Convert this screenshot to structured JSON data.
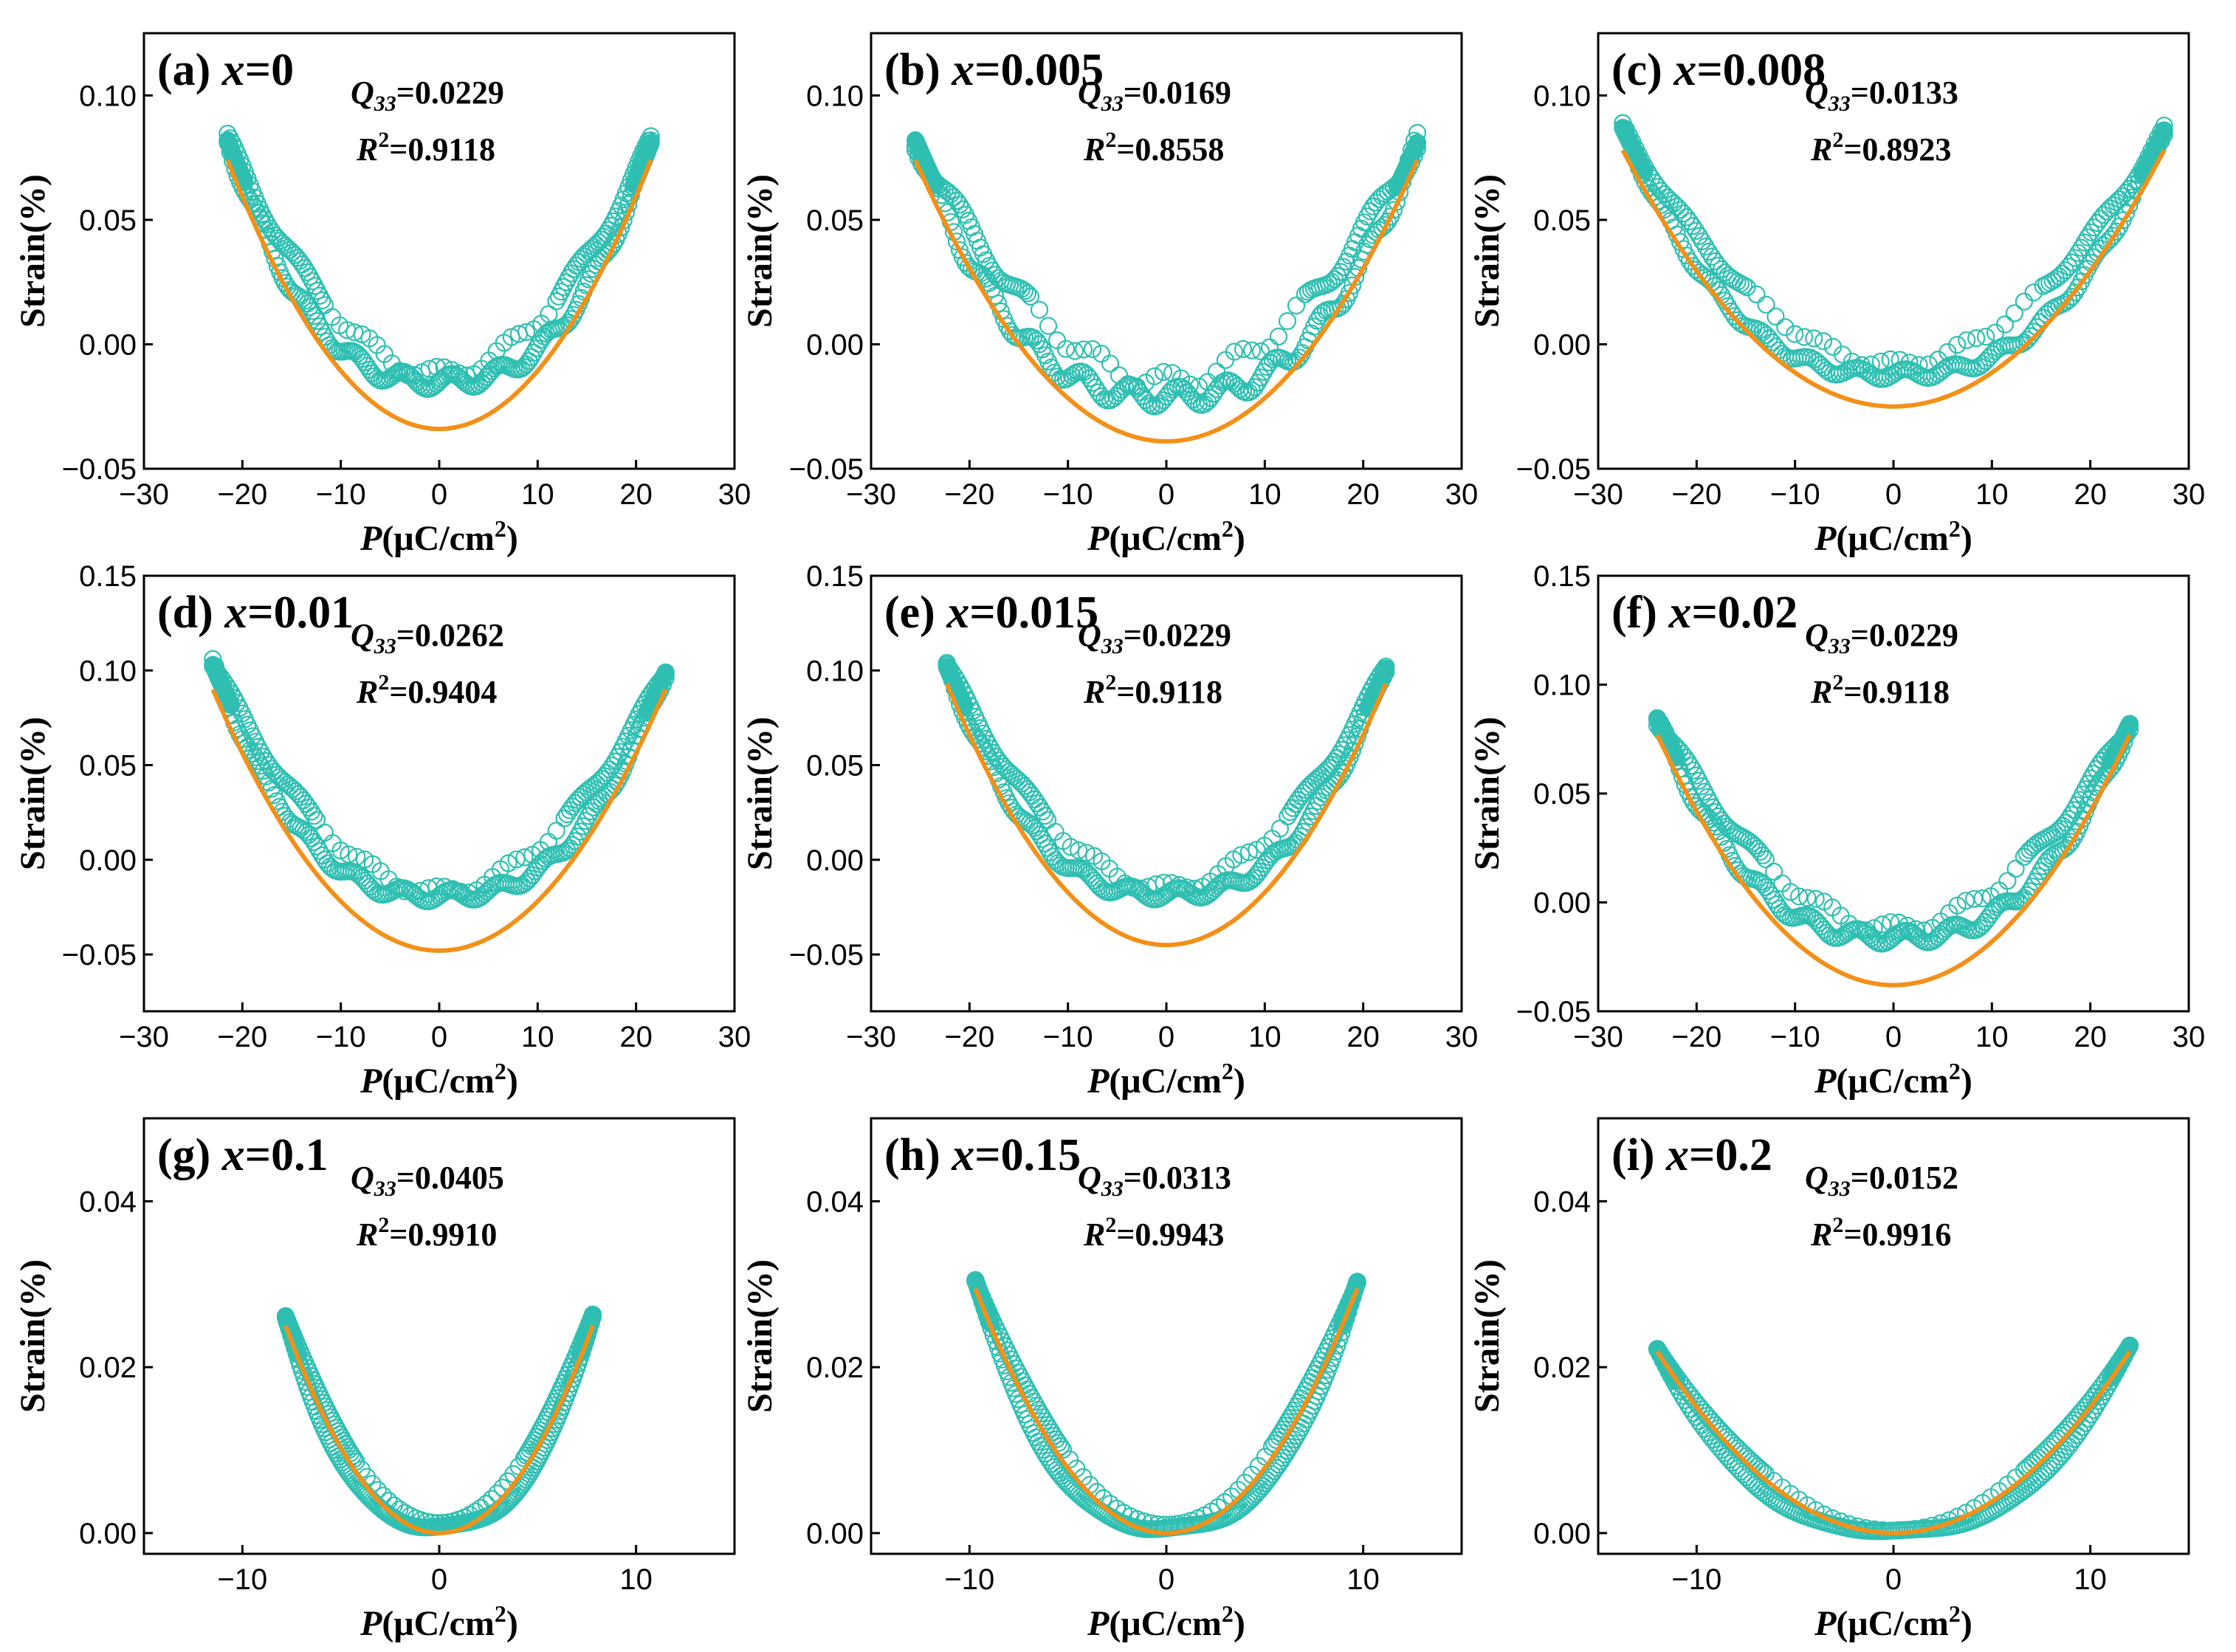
{
  "colors": {
    "measured": "#2fbfb2",
    "fit": "#f39018",
    "axis": "#000000",
    "background": "#ffffff"
  },
  "axes": {
    "ylabel": "Strain(%)",
    "xlabel_symbol": "P",
    "xlabel_unit_prefix": "(μC/cm",
    "xlabel_unit_exp": "2",
    "xlabel_unit_suffix": ")"
  },
  "chart_data": [
    {
      "type": "scatter",
      "panel": "(a)",
      "x_value": "0",
      "q33_value": "0.0229",
      "r2_value": "0.9118",
      "xlim": [
        -30,
        30
      ],
      "ylim": [
        -0.05,
        0.125
      ],
      "xticks": [
        -30,
        -20,
        -10,
        0,
        10,
        20,
        30
      ],
      "yticks": [
        -0.05,
        0,
        0.05,
        0.1
      ],
      "xtick_labels": [
        "−30",
        "−20",
        "−10",
        "0",
        "10",
        "20",
        "30"
      ],
      "ytick_labels": [
        "−0.05",
        "0.00",
        "0.05",
        "0.10"
      ],
      "pmax": 21.5,
      "smax_left": 0.082,
      "smax_right": 0.081,
      "loop_min": -0.015,
      "center_min": -0.012,
      "wave": 0.003,
      "fit_min": -0.034,
      "fit_max": 0.074,
      "series": [
        {
          "name": "",
          "values": "measured strain vs polarization (loop)"
        },
        {
          "name": "",
          "values": "quadratic fit S = Q33·P²"
        }
      ]
    },
    {
      "type": "scatter",
      "panel": "(b)",
      "x_value": "0.005",
      "q33_value": "0.0169",
      "r2_value": "0.8558",
      "xlim": [
        -30,
        30
      ],
      "ylim": [
        -0.05,
        0.125
      ],
      "xticks": [
        -30,
        -20,
        -10,
        0,
        10,
        20,
        30
      ],
      "yticks": [
        -0.05,
        0,
        0.05,
        0.1
      ],
      "xtick_labels": [
        "−30",
        "−20",
        "−10",
        "0",
        "10",
        "20",
        "30"
      ],
      "ytick_labels": [
        "−0.05",
        "0.00",
        "0.05",
        "0.10"
      ],
      "pmax": 25.5,
      "smax_left": 0.082,
      "smax_right": 0.081,
      "loop_min": -0.021,
      "center_min": -0.015,
      "wave": 0.004,
      "fit_min": -0.039,
      "fit_max": 0.074,
      "series": [
        {
          "name": "",
          "values": "measured strain vs polarization (loop)"
        },
        {
          "name": "",
          "values": "quadratic fit S = Q33·P²"
        }
      ]
    },
    {
      "type": "scatter",
      "panel": "(c)",
      "x_value": "0.008",
      "q33_value": "0.0133",
      "r2_value": "0.8923",
      "xlim": [
        -30,
        30
      ],
      "ylim": [
        -0.05,
        0.125
      ],
      "xticks": [
        -30,
        -20,
        -10,
        0,
        10,
        20,
        30
      ],
      "yticks": [
        -0.05,
        0,
        0.05,
        0.1
      ],
      "xtick_labels": [
        "−30",
        "−20",
        "−10",
        "0",
        "10",
        "20",
        "30"
      ],
      "ytick_labels": [
        "−0.05",
        "0.00",
        "0.05",
        "0.10"
      ],
      "pmax": 27.5,
      "smax_left": 0.087,
      "smax_right": 0.086,
      "loop_min": -0.012,
      "center_min": -0.008,
      "wave": 0.002,
      "fit_min": -0.025,
      "fit_max": 0.078,
      "series": [
        {
          "name": "",
          "values": "measured strain vs polarization (loop)"
        },
        {
          "name": "",
          "values": "quadratic fit S = Q33·P²"
        }
      ]
    },
    {
      "type": "scatter",
      "panel": "(d)",
      "x_value": "0.01",
      "q33_value": "0.0262",
      "r2_value": "0.9404",
      "xlim": [
        -30,
        30
      ],
      "ylim": [
        -0.08,
        0.15
      ],
      "xticks": [
        -30,
        -20,
        -10,
        0,
        10,
        20,
        30
      ],
      "yticks": [
        -0.05,
        0,
        0.05,
        0.1,
        0.15
      ],
      "xtick_labels": [
        "−30",
        "−20",
        "−10",
        "0",
        "10",
        "20",
        "30"
      ],
      "ytick_labels": [
        "−0.05",
        "0.00",
        "0.05",
        "0.10",
        "0.15"
      ],
      "pmax": 23,
      "smax_left": 0.103,
      "smax_right": 0.099,
      "loop_min": -0.019,
      "center_min": -0.017,
      "wave": 0.003,
      "fit_min": -0.048,
      "fit_max": 0.09,
      "series": [
        {
          "name": "",
          "values": "measured strain vs polarization (loop)"
        },
        {
          "name": "",
          "values": "quadratic fit S = Q33·P²"
        }
      ]
    },
    {
      "type": "scatter",
      "panel": "(e)",
      "x_value": "0.015",
      "q33_value": "0.0229",
      "r2_value": "0.9118",
      "xlim": [
        -30,
        30
      ],
      "ylim": [
        -0.08,
        0.15
      ],
      "xticks": [
        -30,
        -20,
        -10,
        0,
        10,
        20,
        30
      ],
      "yticks": [
        -0.05,
        0,
        0.05,
        0.1,
        0.15
      ],
      "xtick_labels": [
        "−30",
        "−20",
        "−10",
        "0",
        "10",
        "20",
        "30"
      ],
      "ytick_labels": [
        "−0.05",
        "0.00",
        "0.05",
        "0.10",
        "0.15"
      ],
      "pmax": 22.3,
      "smax_left": 0.102,
      "smax_right": 0.101,
      "loop_min": -0.018,
      "center_min": -0.015,
      "wave": 0.003,
      "fit_min": -0.045,
      "fit_max": 0.093,
      "series": [
        {
          "name": "",
          "values": "measured strain vs polarization (loop)"
        },
        {
          "name": "",
          "values": "quadratic fit S = Q33·P²"
        }
      ]
    },
    {
      "type": "scatter",
      "panel": "(f)",
      "x_value": "0.02",
      "q33_value": "0.0229",
      "r2_value": "0.9118",
      "xlim": [
        -30,
        30
      ],
      "ylim": [
        -0.05,
        0.15
      ],
      "xticks": [
        -30,
        -20,
        -10,
        0,
        10,
        20,
        30
      ],
      "yticks": [
        -0.05,
        0,
        0.05,
        0.1,
        0.15
      ],
      "xtick_labels": [
        "−30",
        "−20",
        "−10",
        "0",
        "10",
        "20",
        "30"
      ],
      "ytick_labels": [
        "−0.05",
        "0.00",
        "0.05",
        "0.10",
        "0.15"
      ],
      "pmax": 24,
      "smax_left": 0.084,
      "smax_right": 0.082,
      "loop_min": -0.016,
      "center_min": -0.012,
      "wave": 0.003,
      "fit_min": -0.038,
      "fit_max": 0.077,
      "series": [
        {
          "name": "",
          "values": "measured strain vs polarization (loop)"
        },
        {
          "name": "",
          "values": "quadratic fit S = Q33·P²"
        }
      ]
    },
    {
      "type": "scatter",
      "panel": "(g)",
      "x_value": "0.1",
      "q33_value": "0.0405",
      "r2_value": "0.9910",
      "xlim": [
        -15,
        15
      ],
      "ylim": [
        -0.0025,
        0.05
      ],
      "xticks": [
        -10,
        0,
        10
      ],
      "yticks": [
        0,
        0.02,
        0.04
      ],
      "xtick_labels": [
        "−10",
        "0",
        "10"
      ],
      "ytick_labels": [
        "0.00",
        "0.02",
        "0.04"
      ],
      "pmax": 7.8,
      "smax_left": 0.026,
      "smax_right": 0.0262,
      "loop_min": 0.0008,
      "center_min": 0.001,
      "wave": 0.0002,
      "fit_min": 0.0,
      "fit_max": 0.025,
      "series": [
        {
          "name": "",
          "values": "measured strain vs polarization (loop)"
        },
        {
          "name": "",
          "values": "quadratic fit S = Q33·P²"
        }
      ]
    },
    {
      "type": "scatter",
      "panel": "(h)",
      "x_value": "0.15",
      "q33_value": "0.0313",
      "r2_value": "0.9943",
      "xlim": [
        -15,
        15
      ],
      "ylim": [
        -0.0025,
        0.05
      ],
      "xticks": [
        -10,
        0,
        10
      ],
      "yticks": [
        0,
        0.02,
        0.04
      ],
      "xtick_labels": [
        "−10",
        "0",
        "10"
      ],
      "ytick_labels": [
        "0.00",
        "0.02",
        "0.04"
      ],
      "pmax": 9.7,
      "smax_left": 0.0305,
      "smax_right": 0.0303,
      "loop_min": 0.0006,
      "center_min": 0.0008,
      "wave": 0.0002,
      "fit_min": 0.0,
      "fit_max": 0.0295,
      "series": [
        {
          "name": "",
          "values": "measured strain vs polarization (loop)"
        },
        {
          "name": "",
          "values": "quadratic fit S = Q33·P²"
        }
      ]
    },
    {
      "type": "scatter",
      "panel": "(i)",
      "x_value": "0.2",
      "q33_value": "0.0152",
      "r2_value": "0.9916",
      "xlim": [
        -15,
        15
      ],
      "ylim": [
        -0.0025,
        0.05
      ],
      "xticks": [
        -10,
        0,
        10
      ],
      "yticks": [
        0,
        0.02,
        0.04
      ],
      "xtick_labels": [
        "−10",
        "0",
        "10"
      ],
      "ytick_labels": [
        "0.00",
        "0.02",
        "0.04"
      ],
      "pmax": 12,
      "smax_left": 0.0222,
      "smax_right": 0.0226,
      "loop_min": 0.0003,
      "center_min": 0.0002,
      "wave": 0.0001,
      "fit_min": 0.0,
      "fit_max": 0.0219,
      "series": [
        {
          "name": "",
          "values": "measured strain vs polarization (loop)"
        },
        {
          "name": "",
          "values": "quadratic fit S = Q33·P²"
        }
      ]
    }
  ]
}
